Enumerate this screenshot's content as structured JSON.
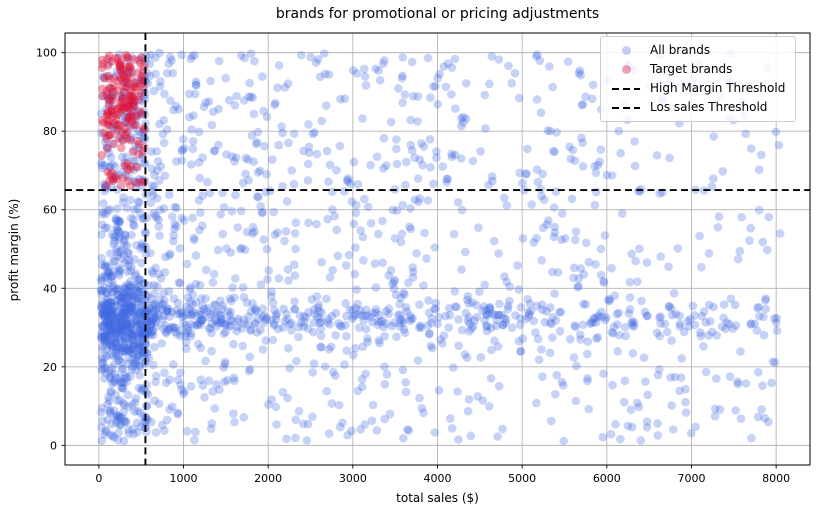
{
  "chart_data": {
    "type": "scatter",
    "title": "brands for promotional or pricing adjustments",
    "xlabel": "total sales ($)",
    "ylabel": "profit margin (%)",
    "xlim": [
      -400,
      8400
    ],
    "ylim": [
      -5,
      105
    ],
    "x_ticks": [
      0,
      1000,
      2000,
      3000,
      4000,
      5000,
      6000,
      7000,
      8000
    ],
    "y_ticks": [
      0,
      20,
      40,
      60,
      80,
      100
    ],
    "grid": true,
    "grid_color": "#b4b4b4",
    "spine_color": "#000000",
    "legend_position": "upper right",
    "legend": [
      {
        "label": "All brands",
        "type": "dot",
        "color": "#4169e1",
        "alpha": 0.32
      },
      {
        "label": "Target brands",
        "type": "dot",
        "color": "#dc143c",
        "alpha": 0.4
      },
      {
        "label": "High Margin Threshold",
        "type": "dash",
        "color": "#000000"
      },
      {
        "label": "Los sales Threshold",
        "type": "dash",
        "color": "#000000"
      }
    ],
    "thresholds": {
      "high_margin": {
        "axis": "y",
        "value": 65,
        "style": "dashed",
        "color": "#000000"
      },
      "low_sales": {
        "axis": "x",
        "value": 550,
        "style": "dashed",
        "color": "#000000"
      }
    },
    "marker": {
      "radius": 4.3
    },
    "random_seed": 7,
    "series": [
      {
        "name": "All brands",
        "data_name": "all-brands-points",
        "color": "#4169e1",
        "alpha": 0.3,
        "approx_n": 2100,
        "clusters": [
          {
            "n": 950,
            "x": {
              "dist": "power",
              "min": 550,
              "range": 7500,
              "exp": 1.45
            },
            "y": {
              "dist": "uniform",
              "min": 1,
              "max": 100
            }
          },
          {
            "n": 430,
            "x": {
              "dist": "power",
              "min": 550,
              "range": 7500,
              "exp": 1.7
            },
            "y": {
              "dist": "normal",
              "mean": 32.5,
              "sd": 2.7,
              "clip": [
                23,
                42
              ]
            }
          },
          {
            "n": 350,
            "x": {
              "dist": "uniform",
              "min": 25,
              "max": 555
            },
            "y": {
              "dist": "normal",
              "mean": 31,
              "sd": 6.5,
              "clip": [
                16,
                46
              ]
            }
          },
          {
            "n": 280,
            "x": {
              "dist": "uniform",
              "min": 25,
              "max": 555
            },
            "y": {
              "dist": "uniform",
              "min": 1,
              "max": 64
            }
          },
          {
            "n": 130,
            "x": {
              "dist": "uniform",
              "min": 25,
              "max": 555
            },
            "y": {
              "dist": "uniform",
              "min": 64,
              "max": 100
            }
          }
        ]
      },
      {
        "name": "Target brands",
        "data_name": "target-brands-points",
        "color": "#dc143c",
        "alpha": 0.4,
        "approx_n": 185,
        "clusters": [
          {
            "n": 105,
            "x": {
              "dist": "uniform",
              "min": 35,
              "max": 540
            },
            "y": {
              "dist": "uniform",
              "min": 66,
              "max": 99
            }
          },
          {
            "n": 80,
            "x": {
              "dist": "uniform",
              "min": 35,
              "max": 540
            },
            "y": {
              "dist": "uniform",
              "min": 78,
              "max": 99.5
            }
          }
        ]
      }
    ]
  }
}
